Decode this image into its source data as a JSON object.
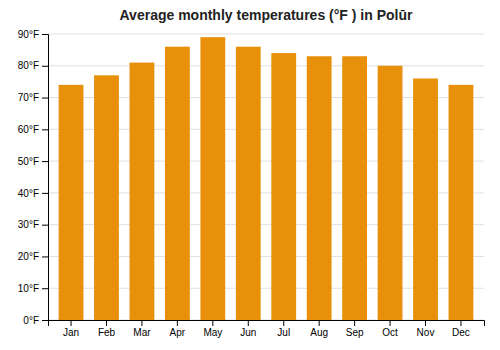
{
  "chart_data": {
    "type": "bar",
    "title": "Average monthly temperatures (°F ) in Polūr",
    "categories": [
      "Jan",
      "Feb",
      "Mar",
      "Apr",
      "May",
      "Jun",
      "Jul",
      "Aug",
      "Sep",
      "Oct",
      "Nov",
      "Dec"
    ],
    "values": [
      74,
      77,
      81,
      86,
      89,
      86,
      84,
      83,
      83,
      80,
      76,
      74
    ],
    "color": "#E8900A",
    "ylim": [
      0,
      90
    ],
    "yticks": [
      {
        "value": 0,
        "label": "0°F"
      },
      {
        "value": 10,
        "label": "10°F"
      },
      {
        "value": 20,
        "label": "20°F"
      },
      {
        "value": 30,
        "label": "30°F"
      },
      {
        "value": 40,
        "label": "40°F"
      },
      {
        "value": 50,
        "label": "50°F"
      },
      {
        "value": 60,
        "label": "60°F"
      },
      {
        "value": 70,
        "label": "70°F"
      },
      {
        "value": 80,
        "label": "80°F"
      },
      {
        "value": 90,
        "label": "90°F"
      }
    ],
    "grid": true
  }
}
